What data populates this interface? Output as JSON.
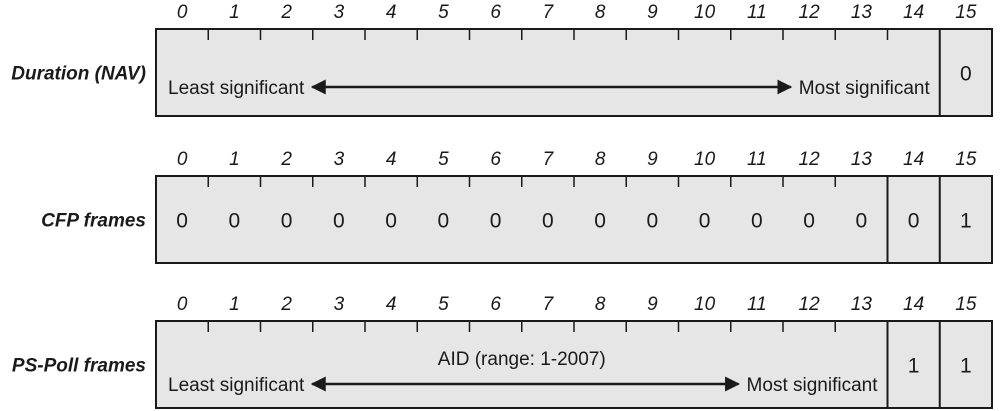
{
  "bit_positions": [
    "0",
    "1",
    "2",
    "3",
    "4",
    "5",
    "6",
    "7",
    "8",
    "9",
    "10",
    "11",
    "12",
    "13",
    "14",
    "15"
  ],
  "rows": [
    {
      "label": "Duration (NAV)",
      "segments": [
        {
          "from": 0,
          "to": 15,
          "left_text": "Least significant",
          "right_text": "Most significant"
        },
        {
          "from": 15,
          "to": 16,
          "value": "0"
        }
      ]
    },
    {
      "label": "CFP frames",
      "segments": [
        {
          "from": 0,
          "to": 14,
          "bits": [
            "0",
            "0",
            "0",
            "0",
            "0",
            "0",
            "0",
            "0",
            "0",
            "0",
            "0",
            "0",
            "0",
            "0"
          ]
        },
        {
          "from": 14,
          "to": 15,
          "value": "0"
        },
        {
          "from": 15,
          "to": 16,
          "value": "1"
        }
      ]
    },
    {
      "label": "PS-Poll frames",
      "segments": [
        {
          "from": 0,
          "to": 14,
          "title": "AID (range: 1-2007)",
          "left_text": "Least significant",
          "right_text": "Most significant"
        },
        {
          "from": 14,
          "to": 15,
          "value": "1"
        },
        {
          "from": 15,
          "to": 16,
          "value": "1"
        }
      ]
    }
  ],
  "colors": {
    "field_fill": "#e6e6e6",
    "stroke": "#1a1a1a",
    "text": "#1a1a1a"
  }
}
